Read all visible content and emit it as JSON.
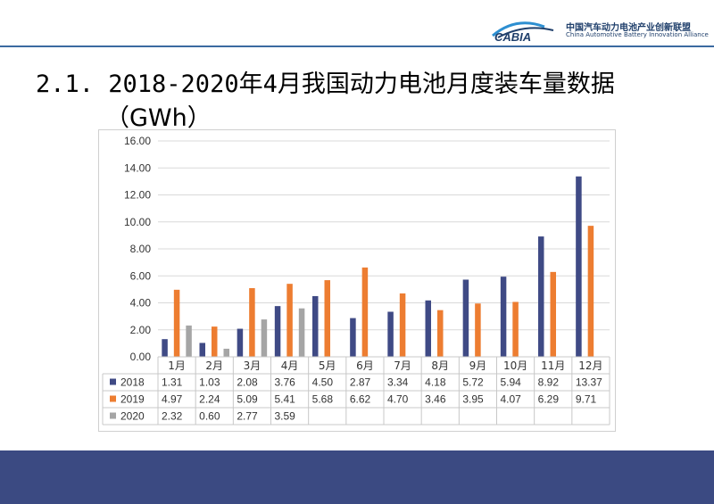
{
  "header": {
    "logo_brand": "CABIA",
    "logo_name_cn": "中国汽车动力电池产业创新联盟",
    "logo_name_en": "China Automotive Battery Innovation Alliance"
  },
  "title": {
    "line1": "2.1. 2018-2020年4月我国动力电池月度装车量数据",
    "line2": "（GWh）"
  },
  "colors": {
    "accent_rule": "#3b6aa0",
    "footer_band": "#3b4a82",
    "series_2018": "#3f4a85",
    "series_2019": "#ed7d31",
    "series_2020": "#a5a5a5"
  },
  "chart_data": {
    "type": "bar",
    "categories": [
      "1月",
      "2月",
      "3月",
      "4月",
      "5月",
      "6月",
      "7月",
      "8月",
      "9月",
      "10月",
      "11月",
      "12月"
    ],
    "series": [
      {
        "name": "2018",
        "values": [
          1.31,
          1.03,
          2.08,
          3.76,
          4.5,
          2.87,
          3.34,
          4.18,
          5.72,
          5.94,
          8.92,
          13.37
        ]
      },
      {
        "name": "2019",
        "values": [
          4.97,
          2.24,
          5.09,
          5.41,
          5.68,
          6.62,
          4.7,
          3.46,
          3.95,
          4.07,
          6.29,
          9.71
        ]
      },
      {
        "name": "2020",
        "values": [
          2.32,
          0.6,
          2.77,
          3.59,
          null,
          null,
          null,
          null,
          null,
          null,
          null,
          null
        ]
      }
    ],
    "value_format": "2 decimals",
    "yticks": [
      "0.00",
      "2.00",
      "4.00",
      "6.00",
      "8.00",
      "10.00",
      "12.00",
      "14.00",
      "16.00"
    ],
    "ylim": [
      0,
      16
    ],
    "grid": true,
    "legend": "data table below chart"
  }
}
